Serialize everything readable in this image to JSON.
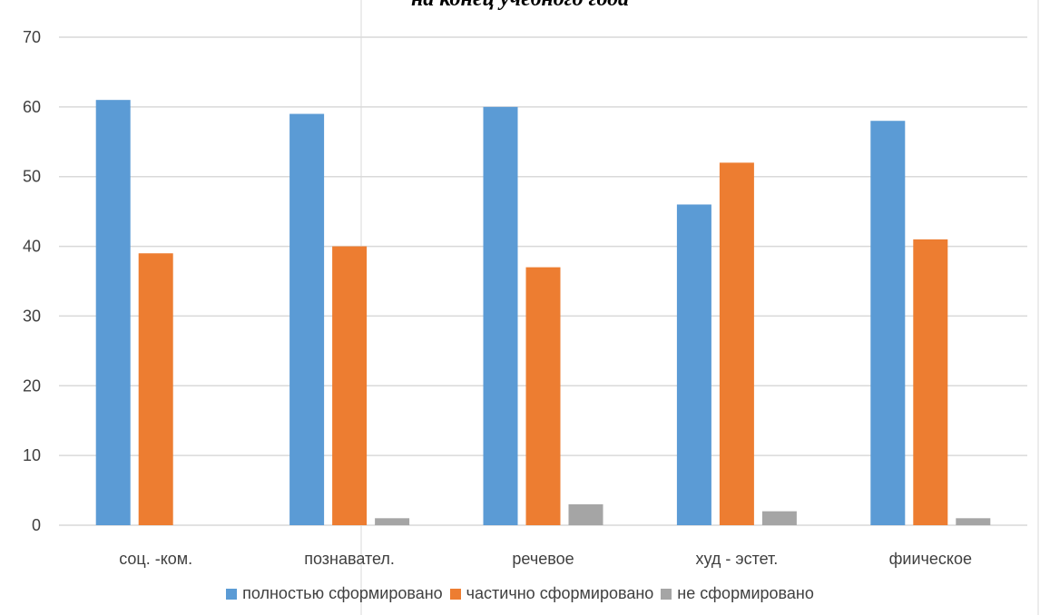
{
  "chart_data": {
    "type": "bar",
    "title": "на конец учебного года",
    "categories": [
      "соц. -ком.",
      "познавател.",
      "речевое",
      "худ - эстет.",
      "фиическое"
    ],
    "series": [
      {
        "name": "полностью сформировано",
        "color": "#5B9BD5",
        "values": [
          61,
          59,
          60,
          46,
          58
        ]
      },
      {
        "name": "частично сформировано",
        "color": "#ED7D31",
        "values": [
          39,
          40,
          37,
          52,
          41
        ]
      },
      {
        "name": "не сформировано",
        "color": "#A5A5A5",
        "values": [
          0,
          1,
          3,
          2,
          1
        ]
      }
    ],
    "ylim": [
      0,
      70
    ],
    "yticks": [
      0,
      10,
      20,
      30,
      40,
      50,
      60,
      70
    ],
    "grid": true,
    "legend_position": "bottom"
  }
}
